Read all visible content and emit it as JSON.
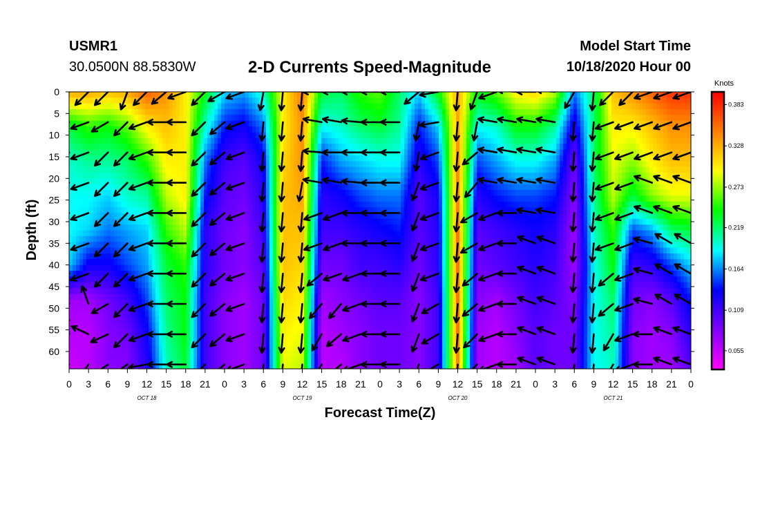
{
  "header": {
    "station_id": "USMR1",
    "location": "30.0500N 88.5830W",
    "title": "2-D Currents Speed-Magnitude",
    "model_start_label": "Model Start Time",
    "model_start_value": "10/18/2020 Hour 00"
  },
  "chart_data": {
    "type": "heatmap",
    "title": "2-D Currents Speed-Magnitude",
    "xlabel": "Forecast Time(Z)",
    "ylabel": "Depth (ft)",
    "x_ticks": [
      "0",
      "3",
      "6",
      "9",
      "12",
      "15",
      "18",
      "21",
      "0",
      "3",
      "6",
      "9",
      "12",
      "15",
      "18",
      "21",
      "0",
      "3",
      "6",
      "9",
      "12",
      "15",
      "18",
      "21",
      "0",
      "3",
      "6",
      "9",
      "12",
      "15",
      "18",
      "21",
      "0"
    ],
    "x_hours_range": [
      0,
      96
    ],
    "date_labels": [
      {
        "text": "OCT 18",
        "hour": 12
      },
      {
        "text": "OCT 19",
        "hour": 36
      },
      {
        "text": "OCT 20",
        "hour": 60
      },
      {
        "text": "OCT 21",
        "hour": 84
      }
    ],
    "y_ticks": [
      0,
      5,
      10,
      15,
      20,
      25,
      30,
      35,
      40,
      45,
      50,
      55,
      60
    ],
    "ylim": [
      0,
      64
    ],
    "colorbar": {
      "label": "Knots",
      "range": [
        0.03,
        0.4
      ],
      "ticks": [
        "0.383",
        "0.328",
        "0.273",
        "0.219",
        "0.164",
        "0.109",
        "0.055"
      ],
      "tick_values": [
        0.383,
        0.328,
        0.273,
        0.219,
        0.164,
        0.109,
        0.055
      ],
      "colors": [
        "#ff00ff",
        "#8000ff",
        "#0000ff",
        "#00ffff",
        "#00ff00",
        "#ffff00",
        "#ff8000",
        "#ff0000"
      ]
    },
    "speed_field": {
      "units": "knots",
      "hours": [
        0,
        3,
        6,
        9,
        12,
        15,
        18,
        21,
        24,
        27,
        30,
        33,
        36,
        39,
        42,
        45,
        48,
        51,
        54,
        57,
        60,
        63,
        66,
        69,
        72,
        75,
        78,
        81,
        84,
        87,
        90,
        93,
        96
      ],
      "depths": [
        0,
        8,
        16,
        24,
        32,
        40,
        48,
        56,
        64
      ],
      "values": [
        [
          0.33,
          0.33,
          0.32,
          0.33,
          0.36,
          0.34,
          0.3,
          0.24,
          0.18,
          0.17,
          0.2,
          0.3,
          0.35,
          0.23,
          0.22,
          0.25,
          0.26,
          0.22,
          0.18,
          0.24,
          0.33,
          0.24,
          0.26,
          0.3,
          0.31,
          0.28,
          0.16,
          0.22,
          0.32,
          0.34,
          0.36,
          0.38,
          0.38
        ],
        [
          0.23,
          0.25,
          0.24,
          0.26,
          0.3,
          0.32,
          0.3,
          0.2,
          0.14,
          0.13,
          0.16,
          0.3,
          0.34,
          0.19,
          0.2,
          0.22,
          0.23,
          0.21,
          0.14,
          0.18,
          0.33,
          0.19,
          0.2,
          0.24,
          0.24,
          0.21,
          0.12,
          0.22,
          0.3,
          0.3,
          0.32,
          0.34,
          0.34
        ],
        [
          0.2,
          0.21,
          0.21,
          0.22,
          0.25,
          0.3,
          0.3,
          0.16,
          0.11,
          0.1,
          0.13,
          0.31,
          0.34,
          0.14,
          0.17,
          0.18,
          0.19,
          0.19,
          0.12,
          0.15,
          0.34,
          0.15,
          0.17,
          0.19,
          0.19,
          0.17,
          0.09,
          0.22,
          0.29,
          0.27,
          0.3,
          0.32,
          0.32
        ],
        [
          0.19,
          0.19,
          0.18,
          0.2,
          0.21,
          0.28,
          0.3,
          0.14,
          0.1,
          0.09,
          0.12,
          0.32,
          0.33,
          0.12,
          0.13,
          0.15,
          0.16,
          0.16,
          0.1,
          0.13,
          0.34,
          0.12,
          0.14,
          0.15,
          0.15,
          0.14,
          0.08,
          0.21,
          0.28,
          0.23,
          0.27,
          0.29,
          0.29
        ],
        [
          0.19,
          0.18,
          0.16,
          0.17,
          0.18,
          0.25,
          0.28,
          0.12,
          0.09,
          0.08,
          0.11,
          0.32,
          0.32,
          0.11,
          0.11,
          0.12,
          0.13,
          0.14,
          0.1,
          0.12,
          0.35,
          0.1,
          0.11,
          0.12,
          0.13,
          0.12,
          0.07,
          0.2,
          0.25,
          0.15,
          0.17,
          0.22,
          0.23
        ],
        [
          0.18,
          0.13,
          0.13,
          0.15,
          0.17,
          0.23,
          0.25,
          0.12,
          0.09,
          0.08,
          0.1,
          0.32,
          0.31,
          0.09,
          0.09,
          0.11,
          0.11,
          0.12,
          0.09,
          0.12,
          0.35,
          0.09,
          0.1,
          0.11,
          0.12,
          0.11,
          0.07,
          0.19,
          0.24,
          0.11,
          0.12,
          0.15,
          0.18
        ],
        [
          0.07,
          0.07,
          0.09,
          0.11,
          0.15,
          0.22,
          0.24,
          0.11,
          0.08,
          0.07,
          0.09,
          0.31,
          0.3,
          0.07,
          0.08,
          0.09,
          0.1,
          0.1,
          0.08,
          0.11,
          0.35,
          0.08,
          0.07,
          0.09,
          0.11,
          0.1,
          0.08,
          0.19,
          0.22,
          0.09,
          0.08,
          0.1,
          0.14
        ],
        [
          0.06,
          0.06,
          0.08,
          0.09,
          0.13,
          0.21,
          0.24,
          0.11,
          0.08,
          0.07,
          0.09,
          0.3,
          0.29,
          0.06,
          0.07,
          0.08,
          0.09,
          0.09,
          0.08,
          0.11,
          0.35,
          0.07,
          0.06,
          0.08,
          0.1,
          0.09,
          0.09,
          0.19,
          0.21,
          0.08,
          0.07,
          0.08,
          0.12
        ],
        [
          0.05,
          0.06,
          0.08,
          0.08,
          0.12,
          0.2,
          0.23,
          0.11,
          0.08,
          0.07,
          0.09,
          0.29,
          0.28,
          0.06,
          0.06,
          0.08,
          0.09,
          0.09,
          0.08,
          0.11,
          0.34,
          0.07,
          0.06,
          0.07,
          0.1,
          0.09,
          0.09,
          0.19,
          0.2,
          0.08,
          0.07,
          0.07,
          0.1
        ]
      ]
    },
    "arrows": {
      "hours": [
        0,
        3,
        6,
        9,
        12,
        15,
        18,
        21,
        24,
        27,
        30,
        33,
        36,
        39,
        42,
        45,
        48,
        51,
        54,
        57,
        60,
        63,
        66,
        69,
        72,
        75,
        78,
        81,
        84,
        87,
        90,
        93,
        96
      ],
      "depths": [
        0,
        7,
        14,
        21,
        28,
        35,
        42,
        49,
        56,
        63
      ],
      "angles_deg": [
        [
          225,
          225,
          225,
          250,
          225,
          220,
          200,
          225,
          210,
          200,
          260,
          265,
          265,
          180,
          180,
          180,
          180,
          180,
          220,
          190,
          265,
          250,
          200,
          175,
          180,
          175,
          240,
          265,
          225,
          225,
          200,
          200,
          200
        ],
        [
          195,
          200,
          210,
          225,
          200,
          180,
          180,
          225,
          220,
          200,
          265,
          265,
          265,
          170,
          170,
          175,
          180,
          180,
          260,
          190,
          265,
          260,
          170,
          170,
          170,
          170,
          265,
          265,
          200,
          200,
          200,
          200,
          200
        ],
        [
          190,
          200,
          225,
          225,
          200,
          180,
          180,
          225,
          220,
          200,
          265,
          265,
          265,
          175,
          180,
          180,
          180,
          180,
          260,
          200,
          265,
          220,
          170,
          170,
          170,
          170,
          265,
          265,
          200,
          200,
          200,
          200,
          200
        ],
        [
          180,
          200,
          225,
          225,
          200,
          180,
          180,
          225,
          220,
          200,
          265,
          265,
          260,
          170,
          170,
          175,
          180,
          180,
          250,
          200,
          265,
          230,
          170,
          170,
          170,
          170,
          265,
          265,
          200,
          200,
          160,
          160,
          160
        ],
        [
          180,
          200,
          225,
          225,
          200,
          180,
          180,
          225,
          220,
          200,
          265,
          265,
          265,
          200,
          200,
          180,
          180,
          180,
          250,
          200,
          265,
          210,
          200,
          180,
          170,
          170,
          265,
          265,
          200,
          200,
          160,
          160,
          160
        ],
        [
          175,
          200,
          225,
          225,
          200,
          180,
          180,
          225,
          220,
          200,
          265,
          265,
          265,
          200,
          200,
          180,
          180,
          180,
          250,
          200,
          265,
          210,
          200,
          180,
          160,
          160,
          265,
          265,
          200,
          200,
          165,
          150,
          150
        ],
        [
          165,
          200,
          225,
          225,
          200,
          180,
          180,
          225,
          220,
          200,
          265,
          265,
          265,
          220,
          200,
          200,
          180,
          180,
          250,
          200,
          265,
          220,
          200,
          180,
          160,
          160,
          265,
          265,
          220,
          200,
          165,
          150,
          150
        ],
        [
          135,
          110,
          210,
          225,
          200,
          180,
          180,
          225,
          220,
          200,
          265,
          265,
          265,
          230,
          230,
          200,
          180,
          180,
          250,
          210,
          265,
          220,
          200,
          180,
          160,
          160,
          265,
          265,
          220,
          200,
          165,
          150,
          150
        ],
        [
          100,
          155,
          205,
          225,
          200,
          180,
          180,
          225,
          220,
          200,
          265,
          265,
          265,
          240,
          220,
          200,
          180,
          180,
          250,
          210,
          265,
          225,
          200,
          180,
          160,
          160,
          265,
          265,
          240,
          200,
          180,
          160,
          160
        ],
        [
          230,
          235,
          215,
          215,
          190,
          180,
          180,
          225,
          220,
          200,
          265,
          265,
          265,
          240,
          220,
          200,
          180,
          180,
          250,
          210,
          265,
          225,
          200,
          180,
          160,
          160,
          265,
          265,
          240,
          200,
          180,
          160,
          160
        ]
      ]
    }
  }
}
